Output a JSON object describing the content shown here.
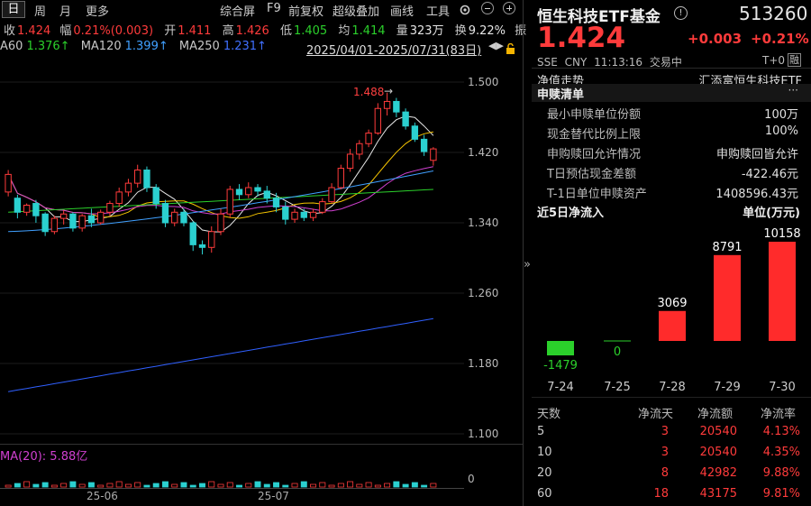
{
  "toolbar": {
    "tabs": [
      "日",
      "周",
      "月",
      "更多"
    ],
    "active_tab": "日",
    "tools": [
      "综合屏",
      "F9",
      "前复权",
      "超级叠加",
      "画线",
      "工具"
    ]
  },
  "quote_line": {
    "close_label": "收",
    "close": "1.424",
    "change_label": "幅",
    "change": "0.21%(0.003)",
    "open_label": "开",
    "open": "1.411",
    "high_label": "高",
    "high": "1.426",
    "low_label": "低",
    "low": "1.405",
    "avg_label": "均",
    "avg": "1.414",
    "vol_label": "量",
    "vol": "323万",
    "turn_label": "换",
    "turn": "9.22%",
    "amp_label": "振"
  },
  "ma_line": {
    "ma60_label": "A60",
    "ma60": "1.376↑",
    "ma120_label": "MA120",
    "ma120": "1.399↑",
    "ma250_label": "MA250",
    "ma250": "1.231↑",
    "range": "2025/04/01-2025/07/31(83日)"
  },
  "chart_data": {
    "type": "candlestick",
    "y_ticks": [
      "1.500",
      "1.420",
      "1.340",
      "1.260",
      "1.180",
      "1.100"
    ],
    "x_ticks": [
      "25-06",
      "25-07"
    ],
    "high_marker": "1.488",
    "volume_label": "MA(20): 5.88亿",
    "volume_tick": "0",
    "candles": [
      [
        1.375,
        1.395,
        1.37,
        1.4
      ],
      [
        1.368,
        1.352,
        1.345,
        1.372
      ],
      [
        1.352,
        1.36,
        1.348,
        1.362
      ],
      [
        1.362,
        1.348,
        1.34,
        1.366
      ],
      [
        1.35,
        1.33,
        1.325,
        1.352
      ],
      [
        1.33,
        1.345,
        1.327,
        1.348
      ],
      [
        1.345,
        1.35,
        1.338,
        1.354
      ],
      [
        1.35,
        1.334,
        1.33,
        1.352
      ],
      [
        1.334,
        1.348,
        1.33,
        1.35
      ],
      [
        1.348,
        1.34,
        1.335,
        1.356
      ],
      [
        1.34,
        1.352,
        1.338,
        1.355
      ],
      [
        1.352,
        1.362,
        1.348,
        1.365
      ],
      [
        1.362,
        1.375,
        1.358,
        1.38
      ],
      [
        1.375,
        1.385,
        1.37,
        1.39
      ],
      [
        1.385,
        1.4,
        1.38,
        1.406
      ],
      [
        1.4,
        1.38,
        1.375,
        1.404
      ],
      [
        1.38,
        1.362,
        1.356,
        1.384
      ],
      [
        1.362,
        1.34,
        1.335,
        1.366
      ],
      [
        1.34,
        1.352,
        1.336,
        1.356
      ],
      [
        1.352,
        1.34,
        1.336,
        1.356
      ],
      [
        1.34,
        1.315,
        1.308,
        1.342
      ],
      [
        1.315,
        1.312,
        1.304,
        1.32
      ],
      [
        1.312,
        1.33,
        1.306,
        1.336
      ],
      [
        1.33,
        1.35,
        1.326,
        1.356
      ],
      [
        1.35,
        1.378,
        1.346,
        1.382
      ],
      [
        1.378,
        1.372,
        1.366,
        1.384
      ],
      [
        1.372,
        1.38,
        1.368,
        1.386
      ],
      [
        1.38,
        1.376,
        1.37,
        1.384
      ],
      [
        1.376,
        1.368,
        1.362,
        1.382
      ],
      [
        1.368,
        1.358,
        1.352,
        1.374
      ],
      [
        1.358,
        1.344,
        1.338,
        1.364
      ],
      [
        1.344,
        1.352,
        1.34,
        1.356
      ],
      [
        1.352,
        1.346,
        1.342,
        1.356
      ],
      [
        1.346,
        1.352,
        1.342,
        1.356
      ],
      [
        1.352,
        1.364,
        1.35,
        1.368
      ],
      [
        1.364,
        1.38,
        1.362,
        1.385
      ],
      [
        1.38,
        1.402,
        1.378,
        1.406
      ],
      [
        1.402,
        1.418,
        1.398,
        1.424
      ],
      [
        1.418,
        1.43,
        1.412,
        1.434
      ],
      [
        1.43,
        1.442,
        1.426,
        1.446
      ],
      [
        1.442,
        1.47,
        1.44,
        1.476
      ],
      [
        1.47,
        1.478,
        1.462,
        1.488
      ],
      [
        1.478,
        1.466,
        1.46,
        1.482
      ],
      [
        1.466,
        1.45,
        1.446,
        1.47
      ],
      [
        1.45,
        1.435,
        1.432,
        1.454
      ],
      [
        1.435,
        1.421,
        1.416,
        1.44
      ],
      [
        1.411,
        1.424,
        1.405,
        1.426
      ]
    ]
  },
  "panel": {
    "title": "恒生科技ETF基金",
    "code": "513260",
    "price": "1.424",
    "change": "+0.003",
    "change_pct": "+0.21%",
    "exchange": "SSE",
    "currency": "CNY",
    "time": "11:13:16",
    "status": "交易中",
    "settle": "T+0",
    "settle_badge": "融",
    "nav_label": "净值走势",
    "nav_value": "汇添富恒生科技ETF",
    "section_title": "申赎清单",
    "more": "···",
    "rows": [
      {
        "k": "最小申赎单位份额",
        "v": "100万"
      },
      {
        "k": "现金替代比例上限",
        "v": "100%"
      },
      {
        "k": "申购赎回允许情况",
        "v": "申购赎回皆允许"
      },
      {
        "k": "T日预估现金差额",
        "v": "-422.46元"
      },
      {
        "k": "T-1日单位申赎资产",
        "v": "1408596.43元"
      }
    ],
    "flow_title": "近5日净流入",
    "flow_unit": "单位(万元)",
    "flows": [
      {
        "date": "7-24",
        "value": -1479,
        "label": "-1479"
      },
      {
        "date": "7-25",
        "value": 0,
        "label": "0"
      },
      {
        "date": "7-28",
        "value": 3069,
        "label": "3069"
      },
      {
        "date": "7-29",
        "value": 8791,
        "label": "8791"
      },
      {
        "date": "7-30",
        "value": 10158,
        "label": "10158"
      }
    ],
    "stat_headers": [
      "天数",
      "净流天",
      "净流额",
      "净流率"
    ],
    "stats": [
      {
        "days": "5",
        "flow_days": "3",
        "amount": "20540",
        "rate": "4.13%"
      },
      {
        "days": "10",
        "flow_days": "3",
        "amount": "20540",
        "rate": "4.35%"
      },
      {
        "days": "20",
        "flow_days": "8",
        "amount": "42982",
        "rate": "9.88%"
      },
      {
        "days": "60",
        "flow_days": "18",
        "amount": "43175",
        "rate": "9.81%"
      }
    ],
    "collapse_glyph": "»"
  },
  "colors": {
    "up": "#ff3b3b",
    "down": "#2bd0d0",
    "ma5": "#e6e6e6",
    "ma10": "#f5c400",
    "ma20": "#d040d0",
    "ma60": "#2bd02b",
    "ma120": "#40a0ff",
    "ma250": "#3060ff"
  }
}
